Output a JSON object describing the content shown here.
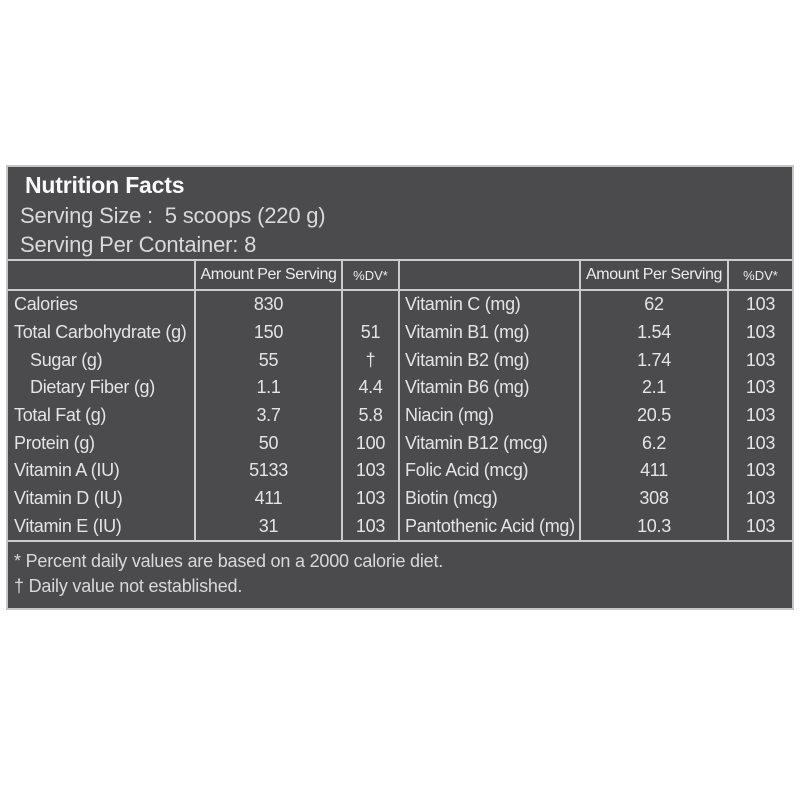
{
  "colors": {
    "page_bg": "#ffffff",
    "panel_bg": "#4b4b4d",
    "panel_border": "#c6c6c6",
    "grid_line": "#cbcbcb",
    "title_text": "#fafafa",
    "body_text": "#e4e4e4",
    "muted_text": "#d9d9d9"
  },
  "label": {
    "title": "Nutrition Facts",
    "serving_size": "Serving Size :  5 scoops (220 g)",
    "serving_per_container": "Serving Per Container: 8"
  },
  "table": {
    "amount_header": "Amount Per Serving",
    "dv_header": "%DV*",
    "left_rows": [
      {
        "name": "Calories",
        "amount": "830",
        "dv": "",
        "indent": false
      },
      {
        "name": "Total Carbohydrate (g)",
        "amount": "150",
        "dv": "51",
        "indent": false
      },
      {
        "name": "Sugar (g)",
        "amount": "55",
        "dv": "†",
        "indent": true
      },
      {
        "name": "Dietary Fiber (g)",
        "amount": "1.1",
        "dv": "4.4",
        "indent": true
      },
      {
        "name": "Total Fat (g)",
        "amount": "3.7",
        "dv": "5.8",
        "indent": false
      },
      {
        "name": "Protein (g)",
        "amount": "50",
        "dv": "100",
        "indent": false
      },
      {
        "name": "Vitamin A (IU)",
        "amount": "5133",
        "dv": "103",
        "indent": false
      },
      {
        "name": "Vitamin D (IU)",
        "amount": "411",
        "dv": "103",
        "indent": false
      },
      {
        "name": "Vitamin E (IU)",
        "amount": "31",
        "dv": "103",
        "indent": false
      }
    ],
    "right_rows": [
      {
        "name": "Vitamin C (mg)",
        "amount": "62",
        "dv": "103"
      },
      {
        "name": "Vitamin B1 (mg)",
        "amount": "1.54",
        "dv": "103"
      },
      {
        "name": "Vitamin B2 (mg)",
        "amount": "1.74",
        "dv": "103"
      },
      {
        "name": "Vitamin B6 (mg)",
        "amount": "2.1",
        "dv": "103"
      },
      {
        "name": "Niacin (mg)",
        "amount": "20.5",
        "dv": "103"
      },
      {
        "name": "Vitamin B12 (mcg)",
        "amount": "6.2",
        "dv": "103"
      },
      {
        "name": "Folic Acid (mcg)",
        "amount": "411",
        "dv": "103"
      },
      {
        "name": "Biotin (mcg)",
        "amount": "308",
        "dv": "103"
      },
      {
        "name": "Pantothenic Acid (mg)",
        "amount": "10.3",
        "dv": "103"
      }
    ]
  },
  "footnotes": {
    "percent": "* Percent daily values are based on a 2000 calorie diet.",
    "dagger": "† Daily value not established."
  }
}
